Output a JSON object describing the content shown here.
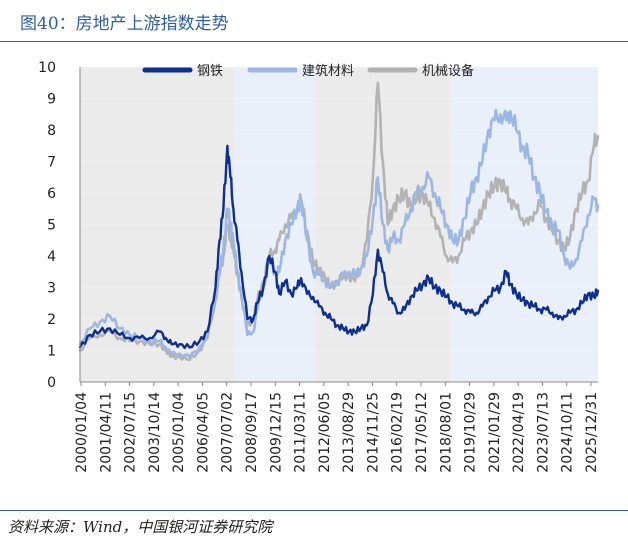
{
  "figure": {
    "title": "图40：房地产上游指数走势",
    "source": "资料来源：Wind，中国银河证券研究院"
  },
  "colors": {
    "title": "#2f5f9e",
    "series_steel": "#0d2f8f",
    "series_building": "#9db7e4",
    "series_machinery": "#b3b3b3",
    "band_gray": "#ebebeb",
    "band_blue": "#eaf0fa"
  },
  "chart_data": {
    "type": "line",
    "title": "",
    "xlabel": "",
    "ylabel": "",
    "ylim": [
      0,
      10
    ],
    "yticks": [
      0,
      1,
      2,
      3,
      4,
      5,
      6,
      7,
      8,
      9,
      10
    ],
    "x_tick_labels": [
      "2000/01/04",
      "2001/04/11",
      "2002/07/15",
      "2003/10/14",
      "2005/01/04",
      "2006/04/05",
      "2007/07/02",
      "2008/09/17",
      "2009/12/15",
      "2011/03/11",
      "2012/06/05",
      "2013/08/29",
      "2014/11/25",
      "2016/02/19",
      "2017/05/12",
      "2018/08/01",
      "2019/10/29",
      "2021/01/29",
      "2022/04/19",
      "2023/07/13",
      "2024/10/11",
      "2025/12/31"
    ],
    "legend_position": "top",
    "background_bands": [
      {
        "from": 2000.0,
        "to": 2007.8,
        "color": "gray"
      },
      {
        "from": 2007.8,
        "to": 2011.8,
        "color": "blue"
      },
      {
        "from": 2011.8,
        "to": 2018.6,
        "color": "gray"
      },
      {
        "from": 2018.6,
        "to": 2026.0,
        "color": "blue"
      }
    ],
    "x_range": [
      2000.0,
      2026.0
    ],
    "series": [
      {
        "name": "钢铁",
        "color": "#0d2f8f",
        "x": [
          2000.0,
          2000.5,
          2001.0,
          2001.5,
          2002.0,
          2002.5,
          2003.0,
          2003.5,
          2004.0,
          2004.3,
          2004.6,
          2005.0,
          2005.5,
          2006.0,
          2006.4,
          2006.8,
          2007.0,
          2007.2,
          2007.4,
          2007.55,
          2007.7,
          2007.9,
          2008.1,
          2008.4,
          2008.7,
          2008.9,
          2009.2,
          2009.5,
          2009.8,
          2010.0,
          2010.3,
          2010.6,
          2010.9,
          2011.1,
          2011.4,
          2011.7,
          2012.0,
          2012.3,
          2012.6,
          2012.9,
          2013.2,
          2013.5,
          2013.8,
          2014.1,
          2014.4,
          2014.7,
          2014.95,
          2015.2,
          2015.45,
          2015.7,
          2016.0,
          2016.3,
          2016.6,
          2016.9,
          2017.2,
          2017.5,
          2017.8,
          2018.1,
          2018.4,
          2018.7,
          2019.0,
          2019.3,
          2019.6,
          2019.9,
          2020.2,
          2020.5,
          2020.8,
          2021.1,
          2021.4,
          2021.6,
          2021.9,
          2022.2,
          2022.5,
          2022.8,
          2023.1,
          2023.4,
          2023.7,
          2024.0,
          2024.3,
          2024.6,
          2024.9,
          2025.2,
          2025.5,
          2025.8,
          2026.0
        ],
        "y": [
          1.1,
          1.5,
          1.6,
          1.7,
          1.5,
          1.4,
          1.4,
          1.4,
          1.6,
          1.4,
          1.2,
          1.2,
          1.1,
          1.3,
          1.6,
          3.0,
          4.5,
          5.5,
          7.5,
          6.5,
          5.5,
          4.5,
          3.5,
          2.0,
          2.0,
          2.5,
          3.0,
          4.0,
          3.5,
          2.8,
          3.2,
          2.8,
          3.0,
          3.3,
          2.8,
          2.7,
          2.4,
          2.2,
          2.0,
          1.8,
          1.7,
          1.6,
          1.6,
          1.7,
          1.8,
          2.8,
          4.2,
          3.5,
          2.8,
          2.5,
          2.2,
          2.3,
          2.7,
          2.9,
          3.1,
          3.3,
          3.0,
          2.9,
          2.7,
          2.5,
          2.4,
          2.3,
          2.2,
          2.2,
          2.4,
          2.7,
          2.9,
          3.0,
          3.5,
          3.1,
          2.8,
          2.6,
          2.5,
          2.4,
          2.3,
          2.3,
          2.2,
          2.0,
          2.1,
          2.2,
          2.3,
          2.5,
          2.8,
          2.7,
          2.9
        ]
      },
      {
        "name": "建筑材料",
        "color": "#9db7e4",
        "x": [
          2000.0,
          2000.5,
          2001.0,
          2001.5,
          2002.0,
          2002.5,
          2003.0,
          2003.5,
          2004.0,
          2004.3,
          2004.6,
          2005.0,
          2005.5,
          2006.0,
          2006.4,
          2006.8,
          2007.0,
          2007.2,
          2007.4,
          2007.55,
          2007.7,
          2007.9,
          2008.1,
          2008.4,
          2008.7,
          2008.9,
          2009.2,
          2009.5,
          2009.8,
          2010.0,
          2010.3,
          2010.6,
          2010.9,
          2011.1,
          2011.4,
          2011.7,
          2012.0,
          2012.3,
          2012.6,
          2012.9,
          2013.2,
          2013.5,
          2013.8,
          2014.1,
          2014.4,
          2014.7,
          2014.95,
          2015.2,
          2015.45,
          2015.7,
          2016.0,
          2016.3,
          2016.6,
          2016.9,
          2017.2,
          2017.5,
          2017.8,
          2018.1,
          2018.4,
          2018.7,
          2019.0,
          2019.3,
          2019.6,
          2019.9,
          2020.2,
          2020.5,
          2020.8,
          2021.1,
          2021.4,
          2021.6,
          2021.9,
          2022.2,
          2022.5,
          2022.8,
          2023.1,
          2023.4,
          2023.7,
          2024.0,
          2024.3,
          2024.6,
          2024.9,
          2025.2,
          2025.5,
          2025.8,
          2026.0
        ],
        "y": [
          1.2,
          1.7,
          1.9,
          2.1,
          1.7,
          1.5,
          1.4,
          1.3,
          1.3,
          1.1,
          0.9,
          0.9,
          0.8,
          1.1,
          1.5,
          2.8,
          3.5,
          4.2,
          5.5,
          5.0,
          4.5,
          3.5,
          2.8,
          1.5,
          1.6,
          2.3,
          3.0,
          3.8,
          3.5,
          3.5,
          4.5,
          5.0,
          5.5,
          5.8,
          4.5,
          3.5,
          3.4,
          3.2,
          3.0,
          3.2,
          3.4,
          3.5,
          3.4,
          3.6,
          4.0,
          5.2,
          6.5,
          5.0,
          4.2,
          4.6,
          4.5,
          5.0,
          5.5,
          6.0,
          6.2,
          6.5,
          6.0,
          5.5,
          5.0,
          4.5,
          4.5,
          5.2,
          6.0,
          6.5,
          7.0,
          8.0,
          8.3,
          8.5,
          8.3,
          8.6,
          8.0,
          7.5,
          7.2,
          6.5,
          6.0,
          5.4,
          5.0,
          4.8,
          4.0,
          3.6,
          3.9,
          4.5,
          5.3,
          5.8,
          5.6
        ]
      },
      {
        "name": "机械设备",
        "color": "#b3b3b3",
        "x": [
          2000.0,
          2000.5,
          2001.0,
          2001.5,
          2002.0,
          2002.5,
          2003.0,
          2003.5,
          2004.0,
          2004.3,
          2004.6,
          2005.0,
          2005.5,
          2006.0,
          2006.4,
          2006.8,
          2007.0,
          2007.2,
          2007.4,
          2007.55,
          2007.7,
          2007.9,
          2008.1,
          2008.4,
          2008.7,
          2008.9,
          2009.2,
          2009.5,
          2009.8,
          2010.0,
          2010.3,
          2010.6,
          2010.9,
          2011.1,
          2011.4,
          2011.7,
          2012.0,
          2012.3,
          2012.6,
          2012.9,
          2013.2,
          2013.5,
          2013.8,
          2014.1,
          2014.4,
          2014.7,
          2014.95,
          2015.2,
          2015.45,
          2015.7,
          2016.0,
          2016.3,
          2016.6,
          2016.9,
          2017.2,
          2017.5,
          2017.8,
          2018.1,
          2018.4,
          2018.7,
          2019.0,
          2019.3,
          2019.6,
          2019.9,
          2020.2,
          2020.5,
          2020.8,
          2021.1,
          2021.4,
          2021.6,
          2021.9,
          2022.2,
          2022.5,
          2022.8,
          2023.1,
          2023.4,
          2023.7,
          2024.0,
          2024.3,
          2024.6,
          2024.9,
          2025.2,
          2025.5,
          2025.8,
          2026.0
        ],
        "y": [
          1.0,
          1.4,
          1.5,
          1.6,
          1.4,
          1.3,
          1.3,
          1.2,
          1.2,
          1.0,
          0.8,
          0.8,
          0.7,
          1.0,
          1.4,
          2.6,
          3.4,
          4.0,
          5.0,
          4.6,
          4.2,
          3.4,
          2.7,
          1.8,
          2.0,
          2.6,
          3.2,
          4.0,
          4.2,
          4.5,
          5.0,
          5.2,
          5.5,
          5.8,
          4.8,
          3.8,
          3.6,
          3.3,
          3.0,
          3.2,
          3.3,
          3.4,
          3.2,
          3.6,
          4.5,
          6.5,
          9.5,
          7.0,
          5.0,
          5.5,
          5.8,
          6.0,
          5.6,
          5.8,
          6.0,
          5.6,
          5.2,
          4.6,
          4.0,
          3.8,
          4.0,
          4.5,
          4.8,
          5.0,
          5.5,
          6.0,
          6.2,
          6.4,
          6.0,
          5.8,
          5.5,
          5.2,
          5.0,
          5.4,
          5.6,
          5.2,
          4.8,
          4.5,
          4.2,
          4.6,
          5.5,
          6.0,
          6.4,
          7.5,
          7.8
        ]
      }
    ]
  }
}
